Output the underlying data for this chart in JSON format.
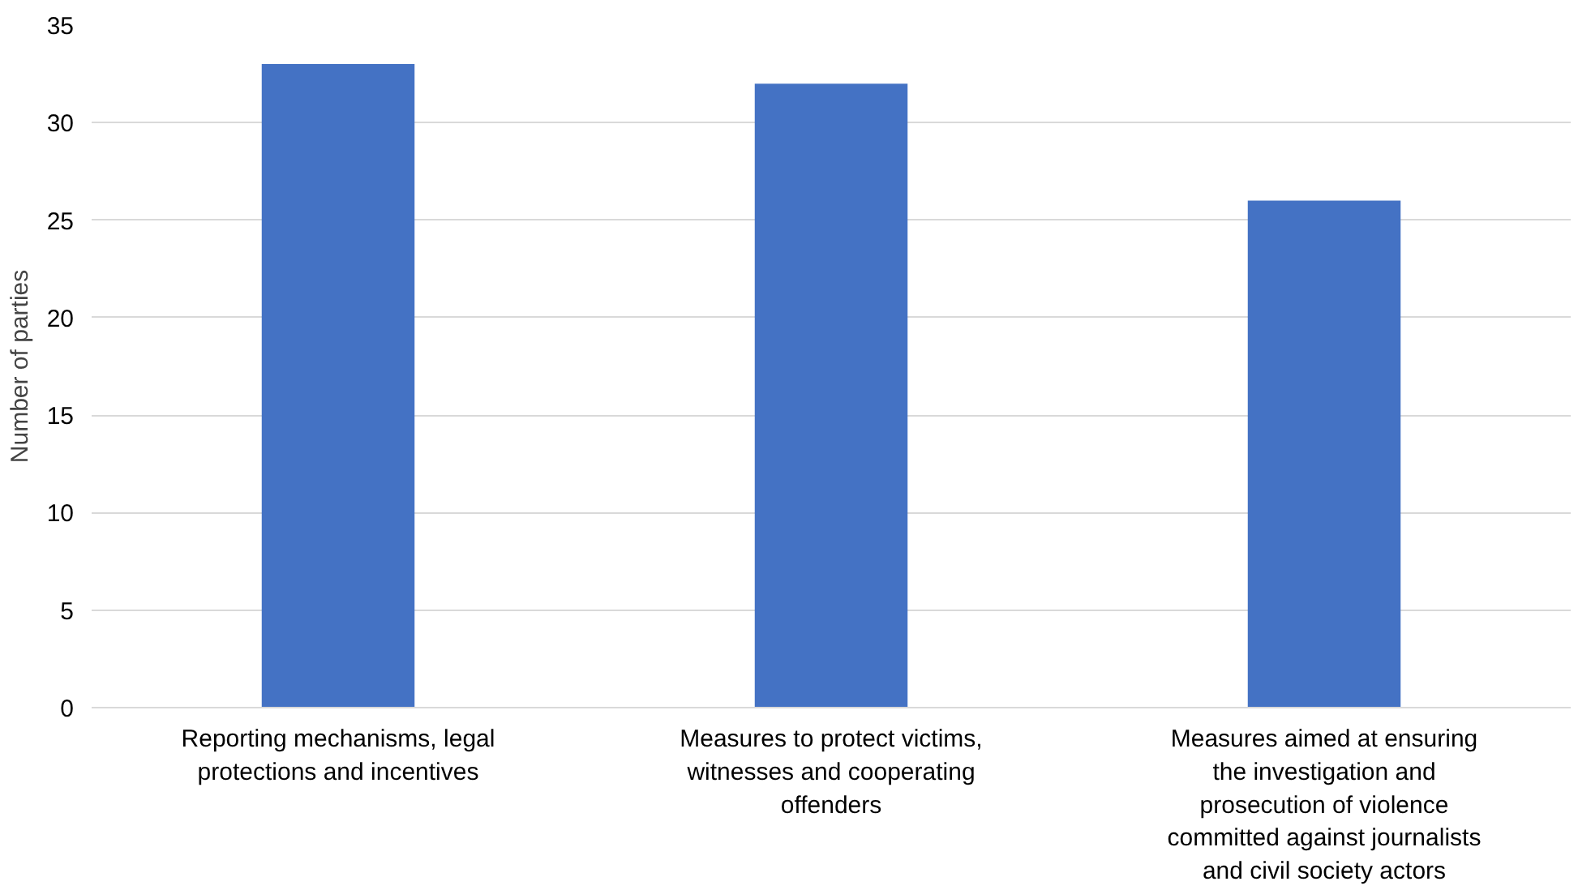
{
  "chart_data": {
    "type": "bar",
    "ylabel": "Number of parties",
    "categories": [
      "Reporting mechanisms, legal protections and incentives",
      "Measures to protect victims, witnesses and cooperating offenders",
      "Measures aimed at ensuring the investigation and prosecution of violence committed against journalists and civil society actors"
    ],
    "values": [
      33,
      32,
      26
    ],
    "color": "#4472c4",
    "ylim": [
      0,
      35
    ],
    "yticks": [
      0,
      5,
      10,
      15,
      20,
      25,
      30,
      35
    ],
    "grid": "y"
  }
}
